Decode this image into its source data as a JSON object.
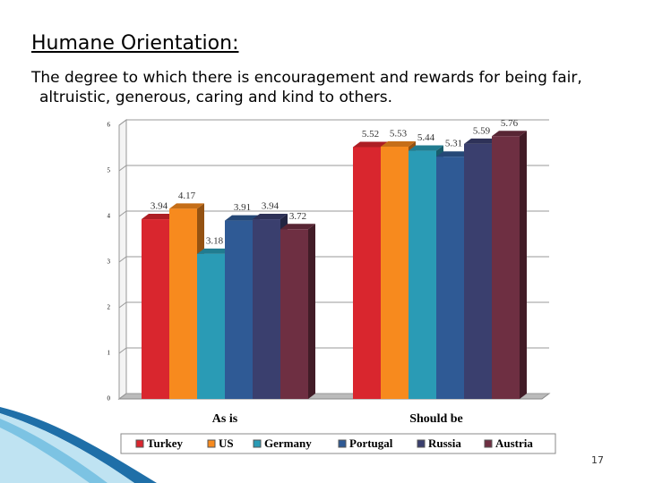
{
  "title": "Humane Orientation:",
  "text": "The degree to which there is encouragement and rewards for being fair, altruistic, generous, caring and kind to others.",
  "page_number": "17",
  "chart_data": {
    "type": "bar",
    "categories": [
      "As is",
      "Should be"
    ],
    "series": [
      {
        "name": "Turkey",
        "color": "#d9262e",
        "values": [
          3.94,
          5.52
        ]
      },
      {
        "name": "US",
        "color": "#f78a1e",
        "values": [
          4.17,
          5.53
        ]
      },
      {
        "name": "Germany",
        "color": "#2a9bb5",
        "values": [
          3.18,
          5.44
        ]
      },
      {
        "name": "Portugal",
        "color": "#2f5a95",
        "values": [
          3.91,
          5.31
        ]
      },
      {
        "name": "Russia",
        "color": "#3a3f6e",
        "values": [
          3.94,
          5.59
        ]
      },
      {
        "name": "Austria",
        "color": "#6e2f42",
        "values": [
          3.72,
          5.76
        ]
      }
    ],
    "ylim": [
      0,
      6
    ],
    "yticks": [
      0,
      1,
      2,
      3,
      4,
      5,
      6
    ],
    "grid": true,
    "legend": "bottom"
  }
}
